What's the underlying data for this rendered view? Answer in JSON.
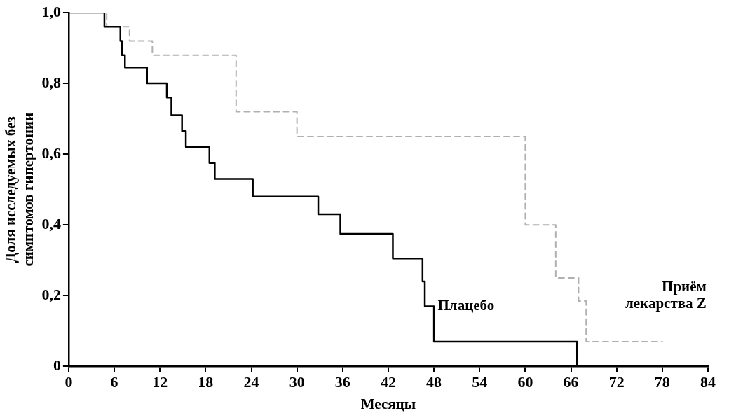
{
  "chart_data": {
    "type": "step",
    "xlabel": "Месяцы",
    "ylabel": "Доля исследуемых без симптомов гипертонии",
    "xlim": [
      0,
      84
    ],
    "xticks": [
      0,
      6,
      12,
      18,
      24,
      30,
      36,
      42,
      48,
      54,
      60,
      66,
      72,
      78,
      84
    ],
    "ylim": [
      0,
      1
    ],
    "yticks": [
      0,
      {
        "value": 0.2,
        "label": "0,2"
      },
      {
        "value": 0.4,
        "label": "0,4"
      },
      {
        "value": 0.6,
        "label": "0,6"
      },
      {
        "value": 0.8,
        "label": "0,8"
      },
      {
        "value": 1,
        "label": "1,0"
      }
    ],
    "grid": false,
    "legend": false,
    "marker": "none",
    "series": [
      {
        "name": "Плацебо",
        "color": "#000000",
        "line_style": "solid",
        "x": [
          0,
          4.7,
          6.8,
          7.0,
          7.4,
          10.3,
          12.9,
          13.5,
          14.9,
          15.4,
          18.5,
          19.2,
          24.2,
          32.8,
          35.7,
          42.6,
          46.5,
          46.8,
          48.0,
          66.8,
          66.8
        ],
        "values": [
          1,
          0.96,
          0.92,
          0.88,
          0.845,
          0.8,
          0.76,
          0.71,
          0.665,
          0.62,
          0.575,
          0.53,
          0.48,
          0.43,
          0.375,
          0.305,
          0.24,
          0.17,
          0.07,
          0,
          0
        ]
      },
      {
        "name": "Приём лекарства Z",
        "color": "#b0b0b0",
        "line_style": "dashed",
        "x": [
          0,
          5,
          8,
          11,
          22,
          30,
          60,
          64,
          67,
          68,
          78
        ],
        "values": [
          1,
          0.96,
          0.92,
          0.88,
          0.72,
          0.65,
          0.4,
          0.25,
          0.185,
          0.07,
          0.07
        ]
      }
    ]
  }
}
